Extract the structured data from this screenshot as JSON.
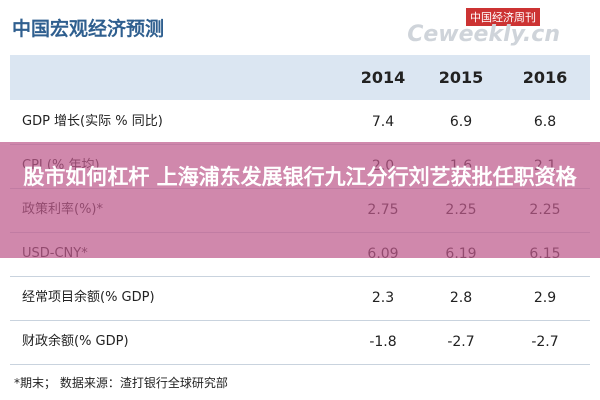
{
  "header": {
    "title": "中国宏观经济预测",
    "watermark": "中国经济周刊",
    "watermark_site": "Ceweekly.cn"
  },
  "table": {
    "columns": [
      "2014",
      "2015",
      "2016"
    ],
    "rows": [
      [
        "GDP 增长(实际 % 同比)",
        "7.4",
        "6.9",
        "6.8"
      ],
      [
        "CPI (% 年均)",
        "2.0",
        "1.6",
        "2.1"
      ],
      [
        "政策利率(%)*",
        "2.75",
        "2.25",
        "2.25"
      ],
      [
        "USD-CNY*",
        "6.09",
        "6.19",
        "6.15"
      ],
      [
        "经常项目余额(% GDP)",
        "2.3",
        "2.8",
        "2.9"
      ],
      [
        "财政余额(% GDP)",
        "-1.8",
        "-2.7",
        "-2.7"
      ]
    ]
  },
  "footnote": "*期末；  数据来源：渣打银行全球研究部",
  "overlay": {
    "headline": "股市如何杠杆 上海浦东发展银行九江分行刘艺获批任职资格"
  }
}
